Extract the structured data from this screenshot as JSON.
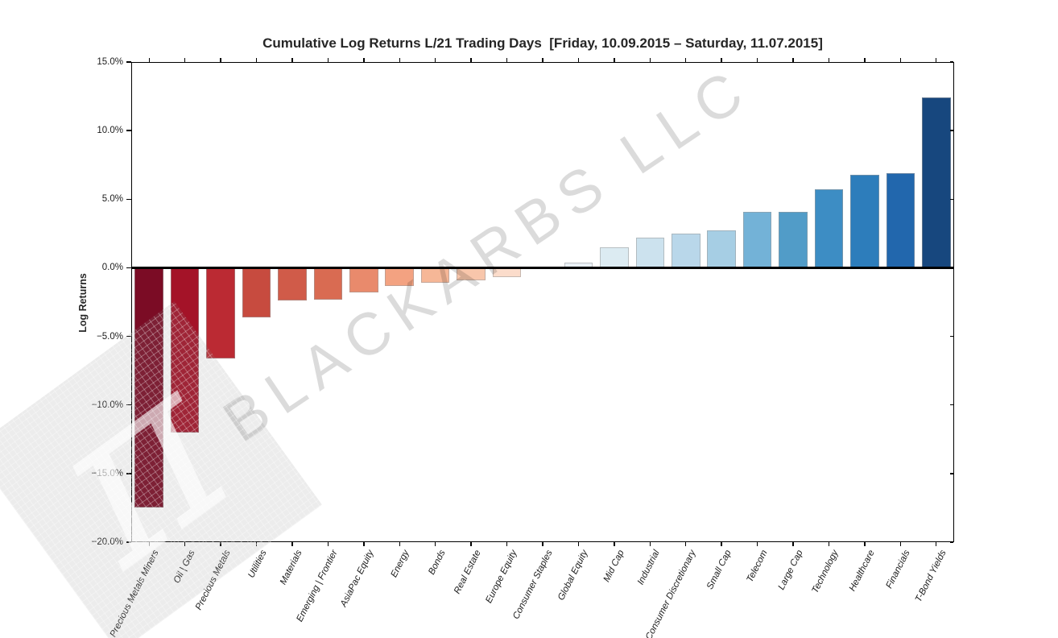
{
  "chart_data": {
    "type": "bar",
    "title": "Cumulative Log Returns L/21 Trading Days  [Friday, 10.09.2015 – Saturday, 11.07.2015]",
    "xlabel": "",
    "ylabel": "Log Returns",
    "ylim": [
      -20,
      15
    ],
    "grid": false,
    "legend": null,
    "unit": "%",
    "ytick_values": [
      15,
      10,
      5,
      0,
      -5,
      -10,
      -15,
      -20
    ],
    "ytick_labels": [
      "15.0%",
      "10.0%",
      "5.0%",
      "0.0%",
      "−5.0%",
      "−10.0%",
      "−15.0%",
      "−20.0%"
    ],
    "categories": [
      "Precious Metals Miners",
      "Oil | Gas",
      "Precious Metals",
      "Utilities",
      "Materials",
      "Emerging | Frontier",
      "AsiaPac Equity",
      "Energy",
      "Bonds",
      "Real Estate",
      "Europe Equity",
      "Consumer Staples",
      "Global Equity",
      "Mid Cap",
      "Industrial",
      "Consumer Discretionary",
      "Small Cap",
      "Telecom",
      "Large Cap",
      "Technology",
      "Healthcare",
      "Financials",
      "T-Bond Yields"
    ],
    "values": [
      -17.5,
      -12.0,
      -6.6,
      -3.6,
      -2.4,
      -2.3,
      -1.8,
      -1.3,
      -1.1,
      -0.9,
      -0.7,
      0.0,
      0.4,
      1.5,
      2.2,
      2.5,
      2.7,
      4.1,
      4.1,
      5.7,
      6.8,
      6.9,
      12.4
    ],
    "bar_colors": [
      "#7b0c25",
      "#a41328",
      "#bb2a33",
      "#c74b3f",
      "#d05b49",
      "#d96b52",
      "#e98a6c",
      "#f3a281",
      "#f6b797",
      "#f8c6ab",
      "#fbdccb",
      "#f7f2ee",
      "#e9f0f5",
      "#dcebf2",
      "#cce2ee",
      "#b9d7ea",
      "#a6cee4",
      "#73b2d7",
      "#519cc8",
      "#3d8dc4",
      "#2d7dbb",
      "#2267ad",
      "#17477e"
    ],
    "bar_edge_color": "#9b9b9b",
    "zero_line_color": "#000000",
    "colormap": "RdBu",
    "watermark": {
      "text": "BLACKARBS LLC",
      "logo_symbol": "π",
      "color": "#d9d9d9"
    }
  }
}
